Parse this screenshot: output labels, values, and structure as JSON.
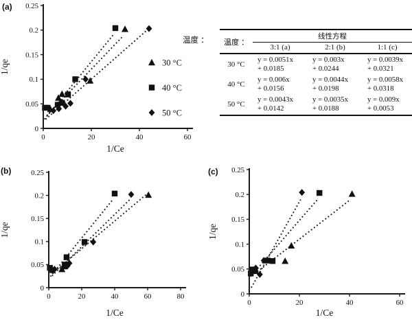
{
  "figure": {
    "background": "#ffffff",
    "ink_color": "#111111"
  },
  "table": {
    "caption": "温度 ：",
    "header_temp": "温度 ：",
    "header_group": "线性方程",
    "columns": [
      "3:1 (a)",
      "2:1 (b)",
      "1:1 (c)"
    ],
    "rows": [
      {
        "temp": "30 °C",
        "eqs": [
          "y = 0.0051x\n+ 0.0185",
          "y = 0.003x\n+ 0.0244",
          "y = 0.0039x\n+ 0.0321"
        ]
      },
      {
        "temp": "40 °C",
        "eqs": [
          "y = 0.006x\n+ 0.0156",
          "y = 0.0044x\n+ 0.0198",
          "y = 0.0058x\n+ 0.0318"
        ]
      },
      {
        "temp": "50 °C",
        "eqs": [
          "y = 0.0043x\n+ 0.0142",
          "y = 0.0035x\n+ 0.0188",
          "y = 0.009x\n+ 0.0053"
        ]
      }
    ]
  },
  "chart_data": [
    {
      "id": "a",
      "type": "scatter",
      "title": "(a)",
      "xlabel": "1/Ce",
      "ylabel": "1/qe",
      "xlim": [
        0,
        60
      ],
      "ylim": [
        0,
        0.25
      ],
      "xticks": [
        0,
        20,
        40,
        60
      ],
      "yticks": [
        0,
        0.05,
        0.1,
        0.15,
        0.2,
        0.25
      ],
      "grid": false,
      "legend": true,
      "legend_position": "inside-right",
      "series": [
        {
          "name": "30 °C",
          "marker": "triangle",
          "points": [
            [
              3,
              0.039
            ],
            [
              6.3,
              0.062
            ],
            [
              7.8,
              0.07
            ],
            [
              19.5,
              0.097
            ],
            [
              34,
              0.202
            ]
          ],
          "trendline": {
            "slope": 0.0051,
            "intercept": 0.0185,
            "x_range": [
              1.5,
              33.3
            ]
          }
        },
        {
          "name": "40 °C",
          "marker": "square",
          "points": [
            [
              0.7,
              0.042
            ],
            [
              1.8,
              0.042
            ],
            [
              6,
              0.048
            ],
            [
              7.8,
              0.052
            ],
            [
              10.3,
              0.069
            ],
            [
              13.3,
              0.1
            ],
            [
              30,
              0.204
            ]
          ],
          "trendline": {
            "slope": 0.006,
            "intercept": 0.0156,
            "x_range": [
              0.5,
              29.3
            ]
          }
        },
        {
          "name": "50 °C",
          "marker": "diamond",
          "points": [
            [
              4.2,
              0.036
            ],
            [
              6.5,
              0.04
            ],
            [
              9.3,
              0.045
            ],
            [
              11.3,
              0.051
            ],
            [
              17.6,
              0.1
            ],
            [
              44,
              0.203
            ]
          ],
          "trendline": {
            "slope": 0.0043,
            "intercept": 0.0142,
            "x_range": [
              1,
              43.3
            ]
          }
        }
      ]
    },
    {
      "id": "b",
      "type": "scatter",
      "title": "(b)",
      "xlabel": "1/Ce",
      "ylabel": "1/qe",
      "xlim": [
        0,
        80
      ],
      "ylim": [
        0,
        0.25
      ],
      "xticks": [
        0,
        20,
        40,
        60,
        80
      ],
      "yticks": [
        0,
        0.05,
        0.1,
        0.15,
        0.2,
        0.25
      ],
      "grid": false,
      "legend": false,
      "series": [
        {
          "name": "30 °C",
          "marker": "triangle",
          "points": [
            [
              8,
              0.04
            ],
            [
              9.5,
              0.046
            ],
            [
              60.5,
              0.201
            ]
          ],
          "trendline": {
            "slope": 0.003,
            "intercept": 0.0244,
            "x_range": [
              2,
              59.5
            ]
          }
        },
        {
          "name": "40 °C",
          "marker": "square",
          "points": [
            [
              0.7,
              0.043
            ],
            [
              2.2,
              0.038
            ],
            [
              9.7,
              0.05
            ],
            [
              10.8,
              0.066
            ],
            [
              21.7,
              0.099
            ],
            [
              40,
              0.204
            ]
          ],
          "trendline": {
            "slope": 0.0044,
            "intercept": 0.0198,
            "x_range": [
              1,
              39.2
            ]
          }
        },
        {
          "name": "50 °C",
          "marker": "diamond",
          "points": [
            [
              3.5,
              0.04
            ],
            [
              11.3,
              0.047
            ],
            [
              12.5,
              0.053
            ],
            [
              27,
              0.099
            ],
            [
              50,
              0.202
            ]
          ],
          "trendline": {
            "slope": 0.0035,
            "intercept": 0.0188,
            "x_range": [
              2,
              49
            ]
          }
        }
      ]
    },
    {
      "id": "c",
      "type": "scatter",
      "title": "(c)",
      "xlabel": "1/Ce",
      "ylabel": "1/qe",
      "xlim": [
        0,
        60
      ],
      "ylim": [
        0,
        0.25
      ],
      "xticks": [
        0,
        20,
        40,
        60
      ],
      "yticks": [
        0,
        0.05,
        0.1,
        0.15,
        0.2,
        0.25
      ],
      "grid": false,
      "legend": false,
      "series": [
        {
          "name": "30 °C",
          "marker": "triangle",
          "points": [
            [
              2.5,
              0.046
            ],
            [
              14.3,
              0.066
            ],
            [
              16.8,
              0.097
            ],
            [
              41,
              0.201
            ]
          ],
          "trendline": {
            "slope": 0.0039,
            "intercept": 0.0321,
            "x_range": [
              1,
              40.3
            ]
          }
        },
        {
          "name": "40 °C",
          "marker": "square",
          "points": [
            [
              0.6,
              0.041
            ],
            [
              1.2,
              0.049
            ],
            [
              2.3,
              0.046
            ],
            [
              7.3,
              0.067
            ],
            [
              9.3,
              0.066
            ],
            [
              28,
              0.203
            ]
          ],
          "trendline": {
            "slope": 0.0058,
            "intercept": 0.0318,
            "x_range": [
              0.5,
              27.3
            ]
          }
        },
        {
          "name": "50 °C",
          "marker": "diamond",
          "points": [
            [
              1,
              0.043
            ],
            [
              2.6,
              0.052
            ],
            [
              4.2,
              0.039
            ],
            [
              5.8,
              0.067
            ],
            [
              21,
              0.204
            ]
          ],
          "trendline": {
            "slope": 0.009,
            "intercept": 0.0053,
            "x_range": [
              0.8,
              20.5
            ]
          }
        }
      ]
    }
  ]
}
